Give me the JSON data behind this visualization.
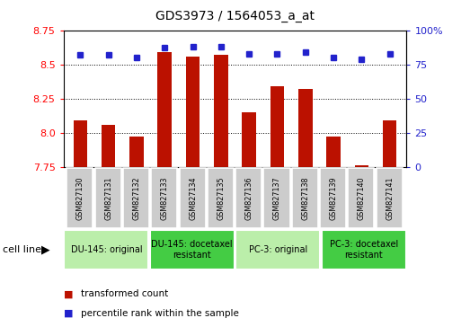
{
  "title": "GDS3973 / 1564053_a_at",
  "samples": [
    "GSM827130",
    "GSM827131",
    "GSM827132",
    "GSM827133",
    "GSM827134",
    "GSM827135",
    "GSM827136",
    "GSM827137",
    "GSM827138",
    "GSM827139",
    "GSM827140",
    "GSM827141"
  ],
  "red_values": [
    8.09,
    8.06,
    7.97,
    8.59,
    8.56,
    8.57,
    8.15,
    8.34,
    8.32,
    7.97,
    7.76,
    8.09
  ],
  "blue_values": [
    82,
    82,
    80,
    87,
    88,
    88,
    83,
    83,
    84,
    80,
    79,
    83
  ],
  "ylim_left": [
    7.75,
    8.75
  ],
  "ylim_right": [
    0,
    100
  ],
  "yticks_left": [
    7.75,
    8.0,
    8.25,
    8.5,
    8.75
  ],
  "yticks_right": [
    0,
    25,
    50,
    75,
    100
  ],
  "ytick_labels_right": [
    "0",
    "25",
    "50",
    "75",
    "100%"
  ],
  "grid_vals": [
    8.0,
    8.25,
    8.5
  ],
  "bar_color": "#bb1100",
  "dot_color": "#2222cc",
  "groups": [
    {
      "label": "DU-145: original",
      "start": 0,
      "end": 3,
      "color": "#bbeeaa"
    },
    {
      "label": "DU-145: docetaxel\nresistant",
      "start": 3,
      "end": 6,
      "color": "#44cc44"
    },
    {
      "label": "PC-3: original",
      "start": 6,
      "end": 9,
      "color": "#bbeeaa"
    },
    {
      "label": "PC-3: docetaxel\nresistant",
      "start": 9,
      "end": 12,
      "color": "#44cc44"
    }
  ],
  "cell_line_label": "cell line",
  "legend_red": "transformed count",
  "legend_blue": "percentile rank within the sample",
  "background_plot": "#ffffff",
  "background_fig": "#ffffff",
  "xticklabel_bg": "#cccccc",
  "bar_width": 0.5
}
